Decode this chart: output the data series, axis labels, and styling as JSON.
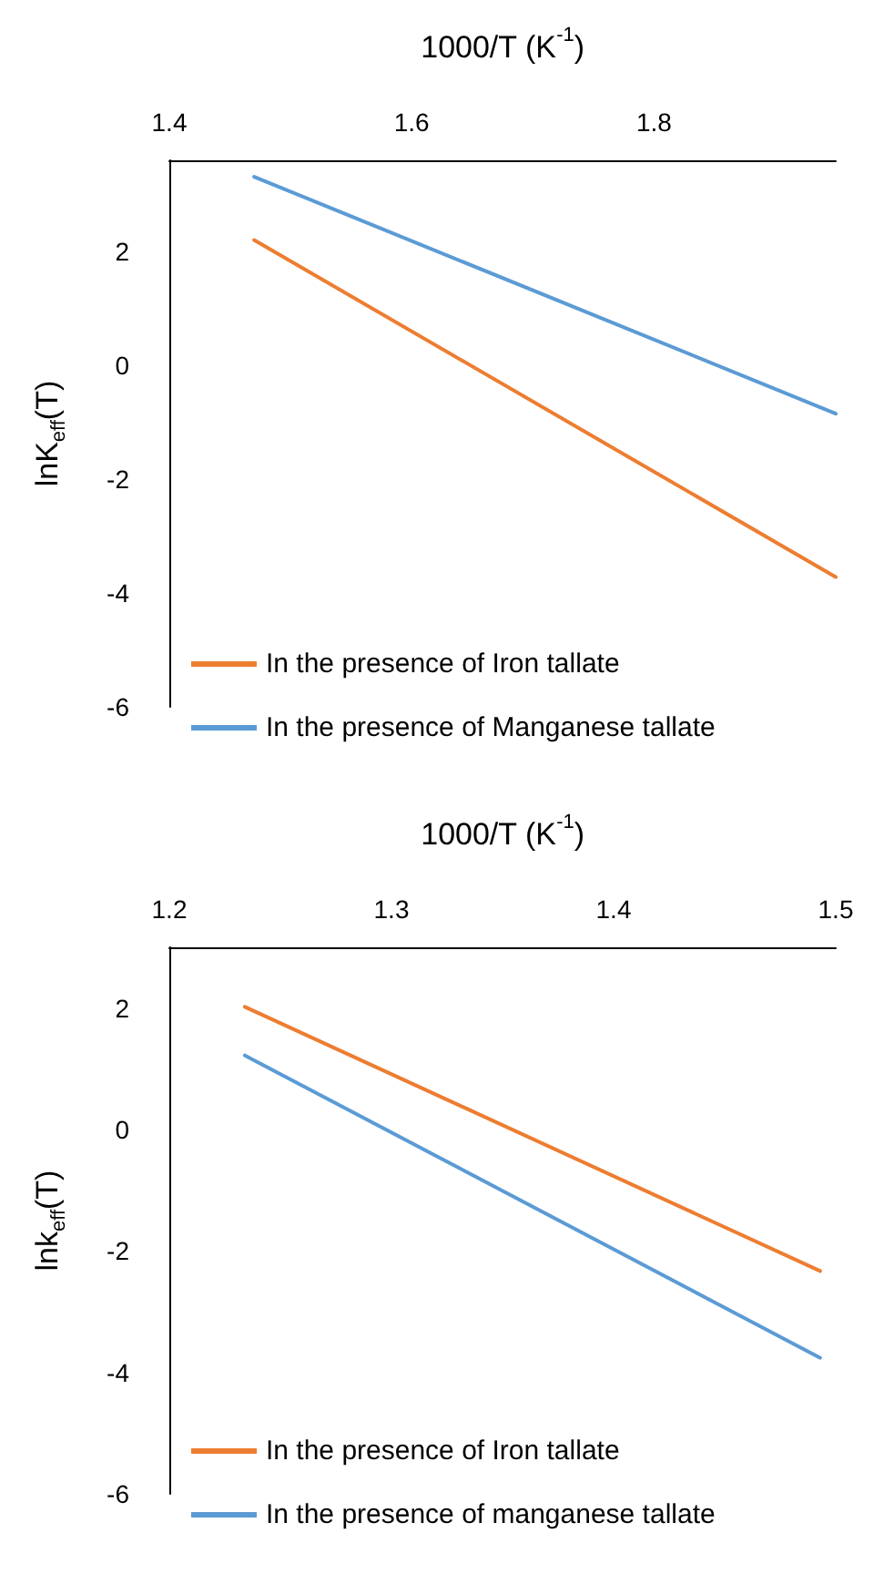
{
  "chart_data": [
    {
      "type": "line",
      "xlabel": "1000/T (K$^{-1}$)",
      "ylabel": "lnK$_{eff}$(T)",
      "xlim": [
        1.4,
        1.95
      ],
      "xticks": [
        1.4,
        1.6,
        1.8
      ],
      "ylim": [
        -6,
        3.6
      ],
      "yticks": [
        -6,
        -4,
        -2,
        0,
        2
      ],
      "grid": false,
      "legend": "bottom left",
      "marker": "none",
      "line_style": "solid",
      "series": [
        {
          "name": "In the presence of Iron tallate",
          "color": "#ed7d31",
          "x": [
            1.47,
            1.95
          ],
          "values": [
            2.2,
            -3.72
          ]
        },
        {
          "name": "In the presence of Manganese tallate",
          "color": "#5b9bd5",
          "x": [
            1.47,
            1.95
          ],
          "values": [
            3.31,
            -0.85
          ]
        }
      ]
    },
    {
      "type": "line",
      "xlabel": "1000/T (K$^{-1}$)",
      "ylabel": "lnk$_{eff}$(T)",
      "xlim": [
        1.2,
        1.5
      ],
      "xticks": [
        1.2,
        1.3,
        1.4,
        1.5
      ],
      "ylim": [
        -6,
        3
      ],
      "yticks": [
        -6,
        -4,
        -2,
        0,
        2
      ],
      "grid": false,
      "legend": "bottom left",
      "marker": "none",
      "line_style": "solid",
      "series": [
        {
          "name": "In the presence of Iron tallate",
          "color": "#ed7d31",
          "x": [
            1.234,
            1.493
          ],
          "values": [
            2.02,
            -2.33
          ]
        },
        {
          "name": "In the presence of manganese tallate",
          "color": "#5b9bd5",
          "x": [
            1.234,
            1.493
          ],
          "values": [
            1.22,
            -3.76
          ]
        }
      ]
    }
  ]
}
